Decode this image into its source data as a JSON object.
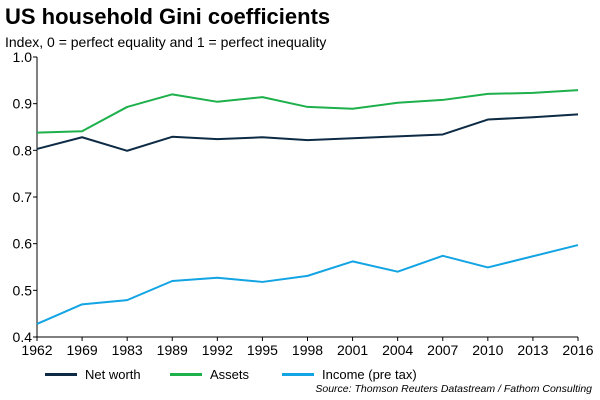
{
  "chart_data": {
    "type": "line",
    "title": "US household Gini coefficients",
    "subtitle": "Index, 0 = perfect equality and 1 = perfect inequality",
    "xlabel": "",
    "ylabel": "",
    "categories": [
      "1962",
      "1969",
      "1983",
      "1989",
      "1992",
      "1995",
      "1998",
      "2001",
      "2004",
      "2007",
      "2010",
      "2013",
      "2016"
    ],
    "ylim": [
      0.4,
      1.0
    ],
    "yticks": [
      "0.4",
      "0.5",
      "0.6",
      "0.7",
      "0.8",
      "0.9",
      "1.0"
    ],
    "grid": false,
    "legend_position": "bottom",
    "series": [
      {
        "name": "Net worth",
        "color": "#0d2b45",
        "values": [
          0.803,
          0.828,
          0.799,
          0.829,
          0.824,
          0.828,
          0.822,
          0.826,
          0.83,
          0.834,
          0.866,
          0.871,
          0.877
        ]
      },
      {
        "name": "Assets",
        "color": "#1db04b",
        "values": [
          0.838,
          0.841,
          0.893,
          0.92,
          0.904,
          0.914,
          0.893,
          0.889,
          0.902,
          0.908,
          0.921,
          0.923,
          0.929
        ]
      },
      {
        "name": "Income (pre tax)",
        "color": "#12a4e3",
        "values": [
          0.428,
          0.47,
          0.479,
          0.52,
          0.527,
          0.518,
          0.531,
          0.562,
          0.54,
          0.574,
          0.549,
          0.573,
          0.597
        ]
      }
    ],
    "source": "Source: Thomson Reuters Datastream / Fathom Consulting"
  }
}
